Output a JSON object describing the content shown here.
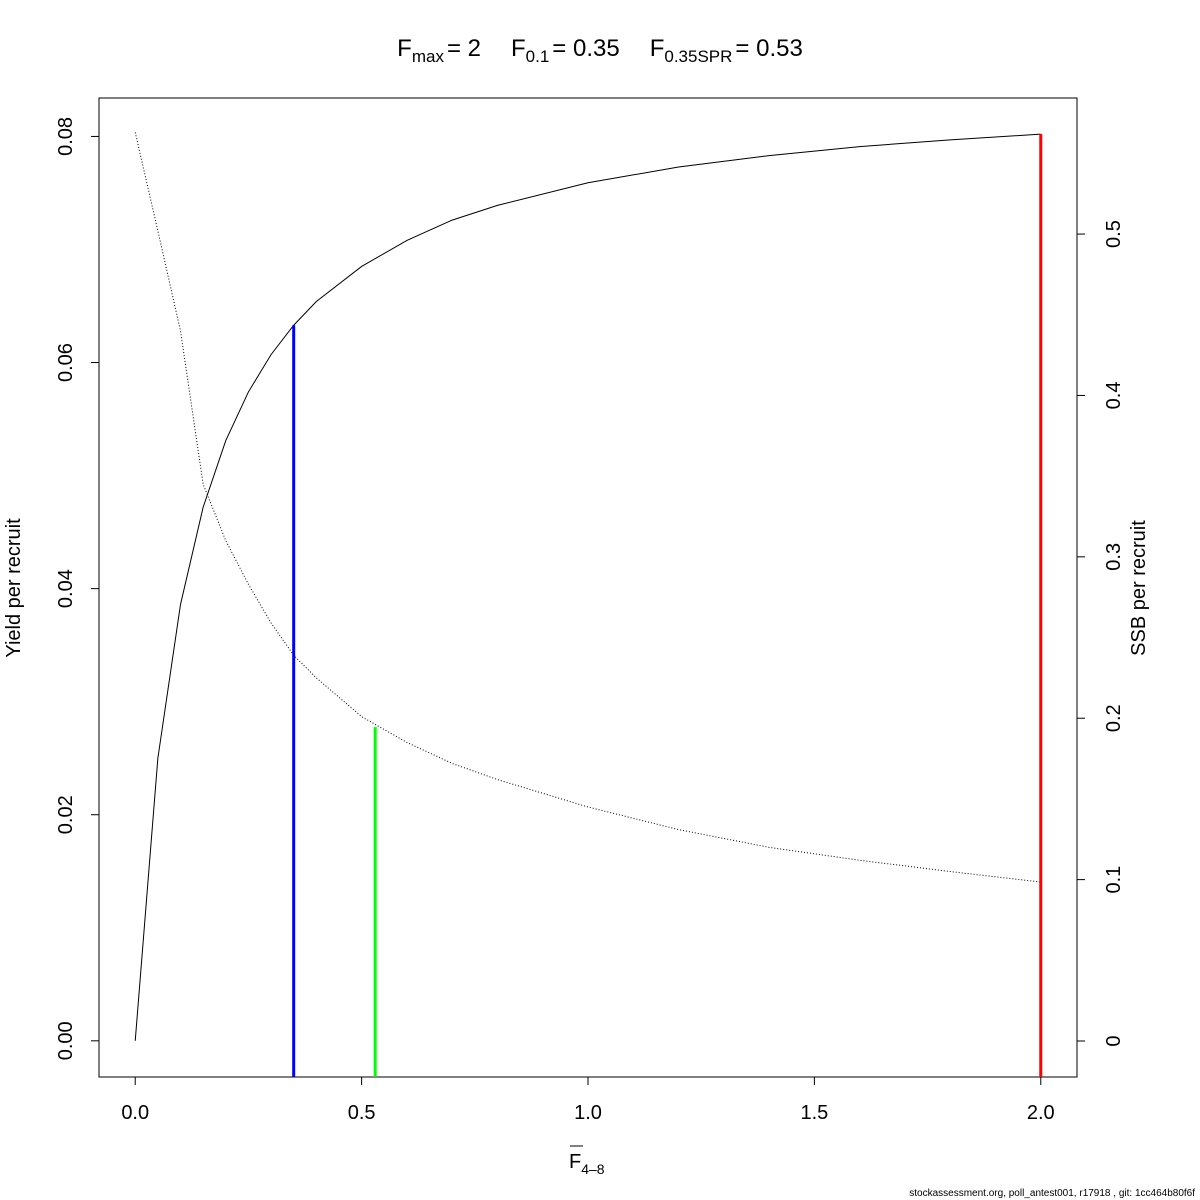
{
  "chart_data": {
    "type": "line",
    "title": [
      {
        "base": "F",
        "sub": "max",
        "rest": "= 2"
      },
      {
        "base": "F",
        "sub": "0.1",
        "rest": "= 0.35"
      },
      {
        "base": "F",
        "sub": "0.35SPR",
        "rest": "= 0.53"
      }
    ],
    "x_label": {
      "base": "F",
      "sub": "4–8"
    },
    "y_label": "Yield per recruit",
    "y2_label": "SSB per recruit",
    "footer": "stockassessment.org, poll_antest001, r17918 , git: 1cc464b80f6f",
    "x": [
      0,
      0.05,
      0.1,
      0.15,
      0.2,
      0.25,
      0.3,
      0.35,
      0.4,
      0.5,
      0.6,
      0.7,
      0.8,
      1.0,
      1.2,
      1.4,
      1.6,
      1.8,
      2.0
    ],
    "series": [
      {
        "name": "Yield per recruit",
        "color": "#000000",
        "style": "solid",
        "values": [
          0,
          0.025,
          0.0386,
          0.0472,
          0.0531,
          0.0574,
          0.0607,
          0.0633,
          0.0654,
          0.0685,
          0.0708,
          0.0726,
          0.0739,
          0.0759,
          0.0773,
          0.0783,
          0.0791,
          0.0797,
          0.0802
        ]
      },
      {
        "name": "SSB per recruit",
        "color": "#000000",
        "style": "dotted",
        "axis": "y2",
        "values": [
          0.563,
          0.502,
          0.44,
          0.345,
          0.31,
          0.283,
          0.259,
          0.239,
          0.225,
          0.201,
          0.185,
          0.172,
          0.162,
          0.145,
          0.131,
          0.12,
          0.112,
          0.105,
          0.0985
        ]
      }
    ],
    "reference_lines": [
      {
        "x": 2,
        "top": 0.0802,
        "axis": "y",
        "color": "#ff0000"
      },
      {
        "x": 0.35,
        "top": 0.0633,
        "axis": "y",
        "color": "#0000ff"
      },
      {
        "x": 0.53,
        "top": 0.1945,
        "axis": "y2",
        "color": "#00ff00"
      }
    ],
    "xlim": [
      -0.08,
      2.08
    ],
    "xticks": [
      {
        "value": 0,
        "label": "0.0"
      },
      0.5,
      {
        "value": 1,
        "label": "1.0"
      },
      1.5,
      {
        "value": 2,
        "label": "2.0"
      }
    ],
    "ylim": [
      -0.0032,
      0.0834
    ],
    "yticks": [
      {
        "value": 0,
        "label": "0.00"
      },
      0.02,
      0.04,
      0.06,
      0.08
    ],
    "y2lim": [
      -0.0223,
      0.5843
    ],
    "y2ticks": [
      0,
      0.1,
      0.2,
      0.3,
      0.4,
      0.5
    ]
  }
}
